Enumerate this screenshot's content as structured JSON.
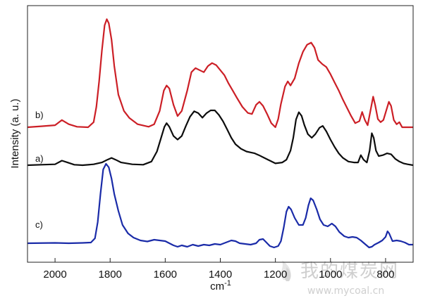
{
  "chart_data": {
    "type": "line",
    "xlabel": "cm",
    "xlabel_superscript": "-1",
    "ylabel": "Intensity (a. u.)",
    "xlim": [
      2100,
      700
    ],
    "x_reversed": true,
    "x_ticks": [
      2000,
      1800,
      1600,
      1400,
      1200,
      1000,
      800
    ],
    "y_ticks_shown": false,
    "grid": false,
    "legend": "none",
    "series": [
      {
        "name": "b)",
        "color": "#cc1f26",
        "points": [
          [
            2100,
            0.0
          ],
          [
            2050,
            0.1
          ],
          [
            2000,
            0.2
          ],
          [
            1975,
            0.7
          ],
          [
            1950,
            0.3
          ],
          [
            1920,
            0.05
          ],
          [
            1880,
            0.0
          ],
          [
            1860,
            0.5
          ],
          [
            1850,
            2.0
          ],
          [
            1840,
            4.5
          ],
          [
            1830,
            7.5
          ],
          [
            1820,
            10.0
          ],
          [
            1812,
            10.6
          ],
          [
            1805,
            10.2
          ],
          [
            1795,
            8.6
          ],
          [
            1785,
            6.0
          ],
          [
            1770,
            3.2
          ],
          [
            1750,
            1.6
          ],
          [
            1730,
            0.9
          ],
          [
            1700,
            0.3
          ],
          [
            1660,
            0.05
          ],
          [
            1640,
            0.3
          ],
          [
            1620,
            1.6
          ],
          [
            1605,
            3.6
          ],
          [
            1595,
            4.1
          ],
          [
            1585,
            3.8
          ],
          [
            1570,
            2.2
          ],
          [
            1555,
            1.1
          ],
          [
            1540,
            1.6
          ],
          [
            1520,
            3.6
          ],
          [
            1505,
            5.4
          ],
          [
            1490,
            5.8
          ],
          [
            1475,
            5.6
          ],
          [
            1460,
            5.4
          ],
          [
            1445,
            6.0
          ],
          [
            1430,
            6.3
          ],
          [
            1415,
            6.1
          ],
          [
            1400,
            5.6
          ],
          [
            1385,
            5.1
          ],
          [
            1370,
            4.3
          ],
          [
            1355,
            3.6
          ],
          [
            1340,
            2.9
          ],
          [
            1320,
            2.0
          ],
          [
            1300,
            1.4
          ],
          [
            1285,
            1.3
          ],
          [
            1270,
            2.2
          ],
          [
            1258,
            2.5
          ],
          [
            1245,
            2.1
          ],
          [
            1230,
            1.3
          ],
          [
            1215,
            0.4
          ],
          [
            1200,
            0.0
          ],
          [
            1190,
            0.8
          ],
          [
            1180,
            2.3
          ],
          [
            1165,
            4.0
          ],
          [
            1155,
            4.5
          ],
          [
            1145,
            4.1
          ],
          [
            1130,
            4.8
          ],
          [
            1115,
            6.3
          ],
          [
            1100,
            7.4
          ],
          [
            1085,
            8.1
          ],
          [
            1070,
            8.3
          ],
          [
            1058,
            7.8
          ],
          [
            1045,
            6.6
          ],
          [
            1030,
            6.2
          ],
          [
            1015,
            5.9
          ],
          [
            1000,
            5.2
          ],
          [
            985,
            4.4
          ],
          [
            970,
            3.6
          ],
          [
            955,
            2.7
          ],
          [
            940,
            1.9
          ],
          [
            925,
            1.1
          ],
          [
            910,
            0.4
          ],
          [
            895,
            0.6
          ],
          [
            885,
            1.5
          ],
          [
            875,
            0.7
          ],
          [
            865,
            0.2
          ],
          [
            855,
            1.6
          ],
          [
            845,
            3.0
          ],
          [
            838,
            2.2
          ],
          [
            828,
            0.8
          ],
          [
            818,
            0.5
          ],
          [
            808,
            0.7
          ],
          [
            798,
            1.6
          ],
          [
            788,
            2.5
          ],
          [
            780,
            2.1
          ],
          [
            770,
            0.7
          ],
          [
            760,
            0.3
          ],
          [
            750,
            0.5
          ],
          [
            740,
            0.0
          ],
          [
            720,
            0.0
          ],
          [
            700,
            0.0
          ]
        ]
      },
      {
        "name": "a)",
        "color": "#0d0d0d",
        "points": [
          [
            2100,
            0.0
          ],
          [
            2050,
            0.05
          ],
          [
            2000,
            0.1
          ],
          [
            1975,
            0.5
          ],
          [
            1955,
            0.3
          ],
          [
            1930,
            0.05
          ],
          [
            1900,
            0.0
          ],
          [
            1860,
            0.1
          ],
          [
            1830,
            0.3
          ],
          [
            1810,
            0.6
          ],
          [
            1795,
            0.8
          ],
          [
            1780,
            0.6
          ],
          [
            1760,
            0.3
          ],
          [
            1720,
            0.1
          ],
          [
            1680,
            0.05
          ],
          [
            1650,
            0.4
          ],
          [
            1630,
            1.5
          ],
          [
            1615,
            3.0
          ],
          [
            1603,
            4.2
          ],
          [
            1595,
            4.6
          ],
          [
            1585,
            4.2
          ],
          [
            1570,
            3.2
          ],
          [
            1555,
            2.8
          ],
          [
            1540,
            3.2
          ],
          [
            1525,
            4.3
          ],
          [
            1510,
            5.3
          ],
          [
            1495,
            5.9
          ],
          [
            1480,
            5.7
          ],
          [
            1465,
            5.2
          ],
          [
            1450,
            5.7
          ],
          [
            1435,
            6.0
          ],
          [
            1420,
            6.0
          ],
          [
            1405,
            5.5
          ],
          [
            1390,
            4.8
          ],
          [
            1375,
            3.9
          ],
          [
            1360,
            3.0
          ],
          [
            1345,
            2.3
          ],
          [
            1325,
            1.8
          ],
          [
            1305,
            1.5
          ],
          [
            1290,
            1.4
          ],
          [
            1275,
            1.3
          ],
          [
            1260,
            1.1
          ],
          [
            1240,
            0.8
          ],
          [
            1220,
            0.5
          ],
          [
            1200,
            0.2
          ],
          [
            1175,
            0.3
          ],
          [
            1160,
            0.6
          ],
          [
            1145,
            1.6
          ],
          [
            1135,
            3.0
          ],
          [
            1125,
            5.0
          ],
          [
            1115,
            5.8
          ],
          [
            1105,
            5.4
          ],
          [
            1095,
            4.4
          ],
          [
            1082,
            3.4
          ],
          [
            1068,
            3.0
          ],
          [
            1055,
            3.4
          ],
          [
            1040,
            4.1
          ],
          [
            1028,
            4.3
          ],
          [
            1015,
            3.7
          ],
          [
            1000,
            2.8
          ],
          [
            985,
            2.0
          ],
          [
            970,
            1.3
          ],
          [
            955,
            0.8
          ],
          [
            935,
            0.4
          ],
          [
            915,
            0.3
          ],
          [
            900,
            0.3
          ],
          [
            890,
            1.1
          ],
          [
            880,
            0.6
          ],
          [
            868,
            0.3
          ],
          [
            858,
            1.6
          ],
          [
            850,
            3.5
          ],
          [
            843,
            3.0
          ],
          [
            835,
            1.6
          ],
          [
            825,
            1.0
          ],
          [
            810,
            1.1
          ],
          [
            795,
            1.3
          ],
          [
            780,
            1.2
          ],
          [
            765,
            0.7
          ],
          [
            750,
            0.4
          ],
          [
            735,
            0.2
          ],
          [
            720,
            0.1
          ],
          [
            700,
            0.0
          ]
        ]
      },
      {
        "name": "c)",
        "color": "#1a2ba8",
        "points": [
          [
            2100,
            0.0
          ],
          [
            2000,
            0.05
          ],
          [
            1950,
            0.0
          ],
          [
            1900,
            0.05
          ],
          [
            1870,
            0.1
          ],
          [
            1855,
            0.7
          ],
          [
            1845,
            3.0
          ],
          [
            1835,
            7.0
          ],
          [
            1825,
            10.5
          ],
          [
            1815,
            11.3
          ],
          [
            1805,
            10.8
          ],
          [
            1795,
            9.2
          ],
          [
            1785,
            7.0
          ],
          [
            1770,
            4.6
          ],
          [
            1755,
            2.6
          ],
          [
            1735,
            1.4
          ],
          [
            1715,
            0.8
          ],
          [
            1690,
            0.4
          ],
          [
            1665,
            0.25
          ],
          [
            1640,
            0.5
          ],
          [
            1620,
            0.4
          ],
          [
            1600,
            0.3
          ],
          [
            1585,
            0.0
          ],
          [
            1570,
            -0.3
          ],
          [
            1555,
            -0.5
          ],
          [
            1540,
            -0.3
          ],
          [
            1520,
            -0.5
          ],
          [
            1500,
            -0.2
          ],
          [
            1480,
            -0.4
          ],
          [
            1460,
            -0.2
          ],
          [
            1440,
            -0.3
          ],
          [
            1420,
            -0.1
          ],
          [
            1400,
            -0.2
          ],
          [
            1380,
            0.1
          ],
          [
            1360,
            0.4
          ],
          [
            1345,
            0.3
          ],
          [
            1330,
            0.0
          ],
          [
            1310,
            -0.1
          ],
          [
            1290,
            -0.2
          ],
          [
            1270,
            0.0
          ],
          [
            1258,
            0.5
          ],
          [
            1245,
            0.6
          ],
          [
            1235,
            0.2
          ],
          [
            1220,
            -0.4
          ],
          [
            1205,
            -0.6
          ],
          [
            1190,
            -0.4
          ],
          [
            1180,
            0.3
          ],
          [
            1170,
            2.2
          ],
          [
            1160,
            4.5
          ],
          [
            1152,
            5.2
          ],
          [
            1143,
            4.8
          ],
          [
            1130,
            3.6
          ],
          [
            1115,
            2.6
          ],
          [
            1100,
            2.6
          ],
          [
            1090,
            3.6
          ],
          [
            1080,
            5.4
          ],
          [
            1072,
            6.4
          ],
          [
            1063,
            6.1
          ],
          [
            1050,
            4.8
          ],
          [
            1038,
            3.4
          ],
          [
            1025,
            2.6
          ],
          [
            1010,
            2.4
          ],
          [
            995,
            2.8
          ],
          [
            982,
            2.4
          ],
          [
            968,
            1.6
          ],
          [
            950,
            1.0
          ],
          [
            935,
            0.8
          ],
          [
            920,
            0.9
          ],
          [
            905,
            0.8
          ],
          [
            890,
            0.4
          ],
          [
            875,
            -0.1
          ],
          [
            860,
            -0.6
          ],
          [
            850,
            -0.5
          ],
          [
            840,
            -0.2
          ],
          [
            825,
            0.1
          ],
          [
            812,
            0.4
          ],
          [
            800,
            0.9
          ],
          [
            793,
            1.7
          ],
          [
            787,
            1.4
          ],
          [
            775,
            0.3
          ],
          [
            760,
            0.4
          ],
          [
            745,
            0.3
          ],
          [
            730,
            0.1
          ],
          [
            715,
            -0.2
          ],
          [
            700,
            -0.2
          ]
        ]
      }
    ]
  },
  "watermark": {
    "chinese": "我的煤炭网",
    "url": "www.mycoal.cn"
  }
}
